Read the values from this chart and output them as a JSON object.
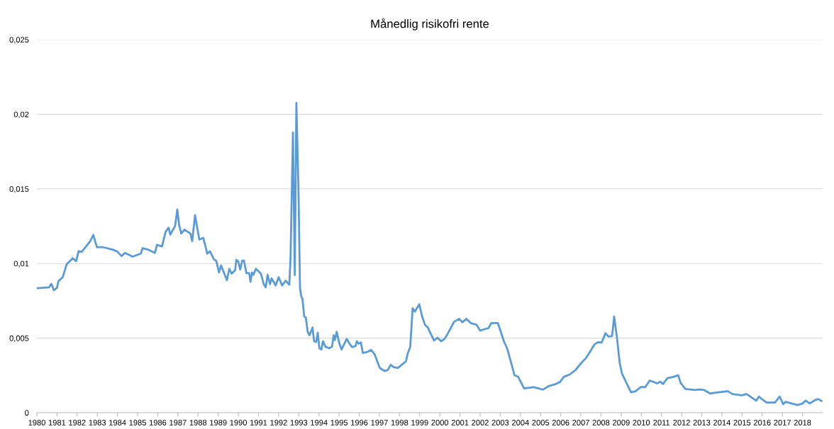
{
  "chart_data": {
    "type": "line",
    "title": "Månedlig risikofri rente",
    "grid": "y",
    "line_style": "solid",
    "marker": "none",
    "xlim": [
      1980,
      2019
    ],
    "xticks": [
      1980,
      1981,
      1982,
      1983,
      1984,
      1985,
      1986,
      1987,
      1988,
      1989,
      1990,
      1991,
      1992,
      1993,
      1994,
      1995,
      1996,
      1997,
      1998,
      1999,
      2000,
      2001,
      2002,
      2003,
      2004,
      2005,
      2006,
      2007,
      2008,
      2009,
      2010,
      2011,
      2012,
      2013,
      2014,
      2015,
      2016,
      2017,
      2018
    ],
    "ylim": [
      0,
      0.025
    ],
    "yticks": [
      {
        "value": 0,
        "label": "0"
      },
      {
        "value": 0.005,
        "label": "0,005"
      },
      {
        "value": 0.01,
        "label": "0,01"
      },
      {
        "value": 0.015,
        "label": "0,015"
      },
      {
        "value": 0.02,
        "label": "0,02"
      },
      {
        "value": 0.025,
        "label": "0,025"
      }
    ],
    "series": [
      {
        "color": "#5b9bd5",
        "x": [
          1980.0,
          1980.26,
          1980.6,
          1980.72,
          1980.84,
          1981.0,
          1981.07,
          1981.28,
          1981.48,
          1981.78,
          1981.95,
          1982.07,
          1982.22,
          1982.65,
          1982.8,
          1982.98,
          1983.29,
          1983.76,
          1983.99,
          1984.2,
          1984.37,
          1984.75,
          1985.16,
          1985.25,
          1985.51,
          1985.86,
          1985.96,
          1986.21,
          1986.39,
          1986.54,
          1986.62,
          1986.86,
          1986.97,
          1987.06,
          1987.17,
          1987.32,
          1987.62,
          1987.71,
          1987.85,
          1988.06,
          1988.26,
          1988.46,
          1988.59,
          1988.79,
          1988.9,
          1989.04,
          1989.14,
          1989.43,
          1989.55,
          1989.67,
          1989.84,
          1989.9,
          1989.99,
          1990.09,
          1990.19,
          1990.28,
          1990.4,
          1990.54,
          1990.6,
          1990.68,
          1990.75,
          1990.87,
          1991.12,
          1991.26,
          1991.36,
          1991.45,
          1991.57,
          1991.65,
          1991.85,
          1992.0,
          1992.17,
          1992.35,
          1992.5,
          1992.53,
          1992.59,
          1992.71,
          1992.8,
          1992.88,
          1992.98,
          1993.06,
          1993.12,
          1993.18,
          1993.27,
          1993.35,
          1993.44,
          1993.53,
          1993.68,
          1993.76,
          1993.86,
          1993.94,
          1994.02,
          1994.12,
          1994.2,
          1994.32,
          1994.51,
          1994.65,
          1994.73,
          1994.79,
          1994.88,
          1995.0,
          1995.12,
          1995.38,
          1995.53,
          1995.65,
          1995.82,
          1995.88,
          1995.96,
          1996.08,
          1996.18,
          1996.41,
          1996.59,
          1996.76,
          1997.02,
          1997.24,
          1997.41,
          1997.56,
          1997.71,
          1997.92,
          1998.18,
          1998.32,
          1998.41,
          1998.53,
          1998.65,
          1998.76,
          1998.98,
          1999.12,
          1999.26,
          1999.41,
          1999.53,
          1999.71,
          1999.88,
          2000.06,
          2000.24,
          2000.41,
          2000.71,
          2000.96,
          2001.12,
          2001.32,
          2001.53,
          2001.82,
          2002.0,
          2002.24,
          2002.41,
          2002.55,
          2002.88,
          2003.18,
          2003.35,
          2003.71,
          2003.88,
          2004.18,
          2004.65,
          2005.12,
          2005.41,
          2005.71,
          2005.98,
          2006.15,
          2006.45,
          2006.74,
          2007.03,
          2007.26,
          2007.44,
          2007.67,
          2007.85,
          2008.03,
          2008.22,
          2008.38,
          2008.55,
          2008.65,
          2008.79,
          2008.93,
          2009.04,
          2009.26,
          2009.49,
          2009.72,
          2009.98,
          2010.19,
          2010.42,
          2010.78,
          2010.95,
          2011.07,
          2011.3,
          2011.6,
          2011.83,
          2011.95,
          2012.18,
          2012.65,
          2012.89,
          2013.12,
          2013.41,
          2013.82,
          2014.29,
          2014.52,
          2014.99,
          2015.23,
          2015.7,
          2015.84,
          2016.0,
          2016.22,
          2016.63,
          2016.87,
          2017.04,
          2017.16,
          2017.39,
          2017.74,
          2017.98,
          2018.15,
          2018.36,
          2018.62,
          2018.78,
          2018.94
        ],
        "values": [
          0.00834,
          0.00837,
          0.0084,
          0.00864,
          0.00821,
          0.00837,
          0.00881,
          0.00908,
          0.00995,
          0.01035,
          0.01016,
          0.01082,
          0.01077,
          0.0115,
          0.01191,
          0.01109,
          0.01109,
          0.01093,
          0.0108,
          0.0105,
          0.01071,
          0.01046,
          0.01066,
          0.01103,
          0.01093,
          0.01071,
          0.01125,
          0.01114,
          0.01213,
          0.0124,
          0.01193,
          0.01251,
          0.01362,
          0.01256,
          0.01201,
          0.01227,
          0.01201,
          0.0115,
          0.01324,
          0.01161,
          0.01172,
          0.01066,
          0.01082,
          0.01027,
          0.01019,
          0.0094,
          0.00987,
          0.00888,
          0.00964,
          0.00932,
          0.00956,
          0.01024,
          0.01016,
          0.0096,
          0.01019,
          0.01019,
          0.00935,
          0.00935,
          0.00877,
          0.0094,
          0.00924,
          0.00964,
          0.00932,
          0.00861,
          0.0084,
          0.00924,
          0.00861,
          0.009,
          0.00853,
          0.00908,
          0.00853,
          0.00885,
          0.00861,
          0.00858,
          0.0104,
          0.01878,
          0.00922,
          0.02076,
          0.01515,
          0.00835,
          0.0078,
          0.00764,
          0.00645,
          0.00637,
          0.00542,
          0.00519,
          0.00571,
          0.00479,
          0.00474,
          0.00537,
          0.00432,
          0.00424,
          0.00479,
          0.00443,
          0.00432,
          0.00443,
          0.00519,
          0.00487,
          0.00542,
          0.00471,
          0.00424,
          0.00495,
          0.00459,
          0.0044,
          0.00447,
          0.00479,
          0.00463,
          0.00471,
          0.004,
          0.00408,
          0.00421,
          0.00392,
          0.003,
          0.00281,
          0.00285,
          0.00321,
          0.00305,
          0.003,
          0.00329,
          0.00345,
          0.004,
          0.0044,
          0.007,
          0.00677,
          0.00727,
          0.00645,
          0.0059,
          0.00569,
          0.00534,
          0.00484,
          0.00503,
          0.00479,
          0.00495,
          0.00534,
          0.0061,
          0.00629,
          0.00606,
          0.00629,
          0.00601,
          0.0059,
          0.0055,
          0.00561,
          0.00566,
          0.00601,
          0.00601,
          0.00479,
          0.00427,
          0.0025,
          0.00242,
          0.00163,
          0.00171,
          0.00155,
          0.00179,
          0.0019,
          0.00208,
          0.0024,
          0.00256,
          0.00287,
          0.00335,
          0.00367,
          0.00406,
          0.00457,
          0.00473,
          0.0047,
          0.00533,
          0.0051,
          0.00514,
          0.00644,
          0.00505,
          0.0033,
          0.00263,
          0.002,
          0.00137,
          0.00144,
          0.00173,
          0.00171,
          0.00216,
          0.00197,
          0.00208,
          0.00192,
          0.00232,
          0.0024,
          0.00251,
          0.002,
          0.0016,
          0.00152,
          0.00156,
          0.00152,
          0.00129,
          0.00137,
          0.00144,
          0.00125,
          0.00117,
          0.00125,
          0.00081,
          0.00108,
          0.00089,
          0.00068,
          0.00068,
          0.00108,
          0.00057,
          0.00073,
          0.00065,
          0.00052,
          0.0006,
          0.00081,
          0.00062,
          0.00084,
          0.00092,
          0.00079
        ]
      }
    ]
  }
}
